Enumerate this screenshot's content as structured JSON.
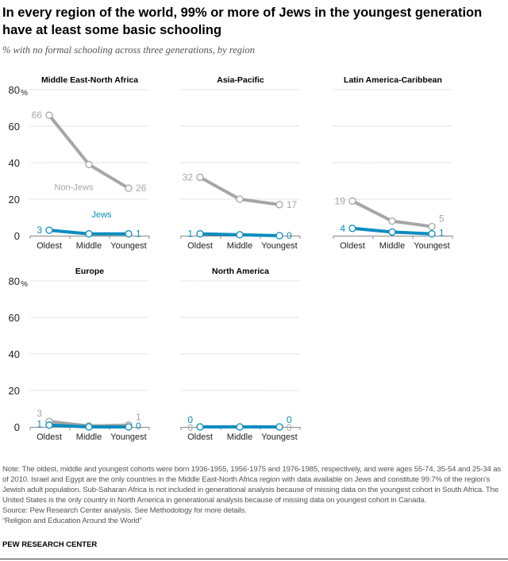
{
  "title": "In every region of the world, 99% or more of Jews in the youngest generation have at least some basic schooling",
  "subtitle": "% with no formal schooling across three generations, by region",
  "chart_data": [
    {
      "type": "line",
      "title": "Middle East-North Africa",
      "categories": [
        "Oldest",
        "Middle",
        "Youngest"
      ],
      "ylim": [
        0,
        80
      ],
      "yticks": [
        0,
        20,
        40,
        60,
        80
      ],
      "ylabel_unit": "%",
      "grid": true,
      "series": [
        {
          "name": "Non-Jews",
          "values": [
            66,
            39,
            26
          ],
          "labels": [
            "66",
            "",
            "26"
          ]
        },
        {
          "name": "Jews",
          "values": [
            3,
            1,
            1
          ],
          "labels": [
            "3",
            "",
            "1"
          ]
        }
      ]
    },
    {
      "type": "line",
      "title": "Asia-Pacific",
      "categories": [
        "Oldest",
        "Middle",
        "Youngest"
      ],
      "ylim": [
        0,
        80
      ],
      "grid": true,
      "series": [
        {
          "values": [
            32,
            20,
            17
          ],
          "labels": [
            "32",
            "",
            "17"
          ]
        },
        {
          "values": [
            1,
            0.5,
            0
          ],
          "labels": [
            "1",
            "",
            "0"
          ]
        }
      ]
    },
    {
      "type": "line",
      "title": "Latin America-Caribbean",
      "categories": [
        "Oldest",
        "Middle",
        "Youngest"
      ],
      "ylim": [
        0,
        80
      ],
      "grid": true,
      "series": [
        {
          "values": [
            19,
            8,
            5
          ],
          "labels": [
            "19",
            "",
            "5"
          ]
        },
        {
          "values": [
            4,
            2,
            1
          ],
          "labels": [
            "4",
            "",
            "1"
          ]
        }
      ]
    },
    {
      "type": "line",
      "title": "Europe",
      "categories": [
        "Oldest",
        "Middle",
        "Youngest"
      ],
      "ylim": [
        0,
        80
      ],
      "yticks": [
        0,
        20,
        40,
        60,
        80
      ],
      "ylabel_unit": "%",
      "grid": true,
      "series": [
        {
          "values": [
            3,
            0.5,
            1
          ],
          "labels": [
            "3",
            "",
            "1"
          ]
        },
        {
          "values": [
            1,
            0,
            0
          ],
          "labels": [
            "1",
            "",
            "0"
          ]
        }
      ]
    },
    {
      "type": "line",
      "title": "North America",
      "categories": [
        "Oldest",
        "Middle",
        "Youngest"
      ],
      "ylim": [
        0,
        80
      ],
      "grid": true,
      "series": [
        {
          "values": [
            0,
            0,
            0
          ],
          "labels": [
            "0",
            "",
            "0"
          ]
        },
        {
          "values": [
            0,
            0,
            0
          ],
          "labels": [
            "0",
            "",
            "0"
          ]
        }
      ]
    }
  ],
  "colors": {
    "non_jews": "#a6a6a6",
    "jews": "#0a8dbf",
    "grid": "#bbbbbb",
    "text": "#333333"
  },
  "notes": [
    "Note: The oldest, middle and youngest cohorts were born 1936-1955, 1956-1975 and 1976-1985, respectively, and were ages 55-74, 35-54 and 25-34 as of 2010. Israel and Egypt are the only countries in the Middle East-North Africa region with data available on Jews and constitute 99.7% of the region's Jewish adult population. Sub-Saharan Africa is not included in generational analysis because of missing data on the youngest cohort in South Africa. The United States is the only country in North America in generational analysis because of missing data on youngest cohort in Canada.",
    "Source: Pew Research Center analysis. See Methodology for more details.",
    "“Religion and Education Around the World”"
  ],
  "brand": "PEW RESEARCH CENTER"
}
